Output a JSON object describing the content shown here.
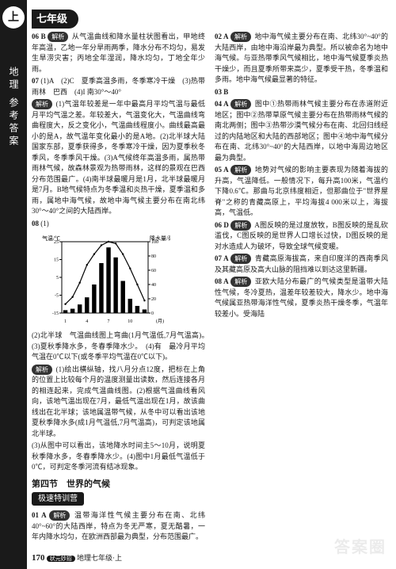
{
  "sidebar": {
    "badge": "上",
    "subject": "地理 参考答案"
  },
  "grade": "七年级",
  "leftCol": {
    "q06": {
      "num": "06 B",
      "label": "解析",
      "text": "从气温曲线和降水量柱状图看出，甲地终年高温，乙地一年分旱雨两季，降水分布不均匀，易发生旱涝灾害；丙地全年湿润，降水均匀，丁地全年少雨。"
    },
    "q07": {
      "num": "07",
      "ans": "(1)A　(2)C　夏季高温多雨，冬季寒冷干燥　(3)热带雨林　巴西　(4)I 南30°～40°",
      "label": "解析",
      "text": "(1)气温年较差是一年中最高月平均气温与最低月平均气温之差。年较差大，气温变化大，气温曲线弯曲程度大，反之变化小，气温曲线程度小。曲线最高最小的是A，故气温年变化最小的是A地。(2)北半球大陆国家东部，夏季获得多，冬季寒冷干燥，因为夏季秋冬季风，冬季季风干燥。(3)A气候终年高温多雨，属热带雨林气候，故森林景观为热带雨林，这样的景观在巴西分布范围最广。(4)南半球最暖月是1月，北半球最暖月是7月。B地气候特点为冬季温和炎热干燥，夏季温和多雨，属地中海气候，故地中海气候主要分布在南北纬30°～40°之间的大陆西岸。"
    },
    "q08": {
      "num": "08",
      "chart_title": "(1)",
      "chart": {
        "y_left_label": "气温/℃",
        "y_right_label": "降水量/毫米",
        "y_left_ticks": [
          -15,
          -5,
          5,
          15,
          25
        ],
        "y_right_ticks": [
          0,
          20,
          40,
          60,
          80,
          100
        ],
        "x_ticks": [
          1,
          4,
          7,
          10
        ],
        "x_suffix": "(月)",
        "temp_line": [
          -10,
          -6,
          2,
          12,
          18,
          23,
          25,
          24,
          18,
          10,
          1,
          -8
        ],
        "temp_color": "#000000",
        "precip_bars": [
          4,
          6,
          12,
          22,
          40,
          70,
          92,
          78,
          45,
          20,
          10,
          5
        ],
        "bar_color": "#000000",
        "bg": "#ffffff",
        "border": "#000000"
      },
      "text2": "(2)北半球　气温曲线图上弯曲(1月气温低,7月气温高)。　(3)夏秋季降水多，冬春季降水少。　(4)有　最冷月平均气温在0℃以下(或冬季平均气温在0℃以下)。",
      "label": "解析",
      "text3": "(1)绘出横纵轴，找八月分点12度，把标在上角的位置上比较每个月的温度测量出读数，然后连接各月的相连起来，完成气温曲线图。(2)根据气温曲线看风向，该地气温出现在7月，最低气温出现在1月，故该曲线出在北半球；该地属温带气候，从冬中可以看出该地夏秋季降水多(成1月气温低,7月气温高)，可判定该地属北半球。"
    }
  },
  "rightCol": {
    "continuation": "(3)从图中可以看出，该地降水时间主5～10月，说明夏秋季降水多，冬春季降水少。(4)图中1月最低气温低于0℃，可判定冬季河流有结冰现象。",
    "section": "第四节　世界的气候",
    "camp": "极速特训营",
    "q01": {
      "num": "01 A",
      "label": "解析",
      "text": "温带海洋性气候主要分布在南、北纬40°~60°的大陆西岸，特点为冬无严寒，夏无酷暑，一年内降水均匀，在欧洲西部最为典型，分布范围最广。"
    },
    "q02": {
      "num": "02 A",
      "label": "解析",
      "text": "地中海气候主要分布在南、北纬30°~40°的大陆西岸，由地中海沿岸最为典型。所以被命名为地中海气候。与亚热带季风气候相比，地中海气候夏季炎热干燥少，而且夏季所带来高少，夏季受干热，冬季温和多雨。地中海气候最显著的特征。"
    },
    "q03": {
      "num": "03 B"
    },
    "q04": {
      "num": "04 A",
      "label": "解析",
      "text": "图中①热带雨林气候主要分布在赤道附近地区；图中②热带草原气候主要分布在热带雨林气候的南北两侧；图中③热带沙漠气候分布在南、北回归线经过的内陆地区和大陆的西部地区；图中④地中海气候分布在南、北纬30°~40°的大陆西岸，以地中海周边地区最为典型。"
    },
    "q05": {
      "num": "05 A",
      "label": "解析",
      "text": "地势对气候的影响主要表现为随着海拔的升高，气温降低。一般情况下，每升高100米，气温约下降0.6℃。那曲与北京纬度相近，但那曲位于\"世界屋脊\"之称的青藏高原上，平均海拔4 000米以上，海拔高，气温低。"
    },
    "q06": {
      "num": "06 D",
      "label": "解析",
      "text": "A图反映的是过度放牧，B图反映的是乱砍滥伐，C图反映的是世界人口增长过快，D图反映的是对水造成人为破坏，导致全球气候变暖。"
    },
    "q07": {
      "num": "07 A",
      "label": "解析",
      "text": "青藏高原海拔高，来自印度洋的西南季风及其藏高原及高大山脉的阻挡难以到达这里新疆。"
    },
    "q08": {
      "num": "08 A",
      "label": "解析",
      "text": "亚欧大陆分布最广的气候类型是温带大陆性气候，冬冷夏热，温差年较差较大，降水少。地中海气候属亚热带海洋性气候，夏季炎热干燥冬季，气温年较差小。受海陆"
    }
  },
  "footer": {
    "page": "170",
    "tag": "状元妙招",
    "book": "地理七年级·上"
  },
  "watermark": "答案圈"
}
